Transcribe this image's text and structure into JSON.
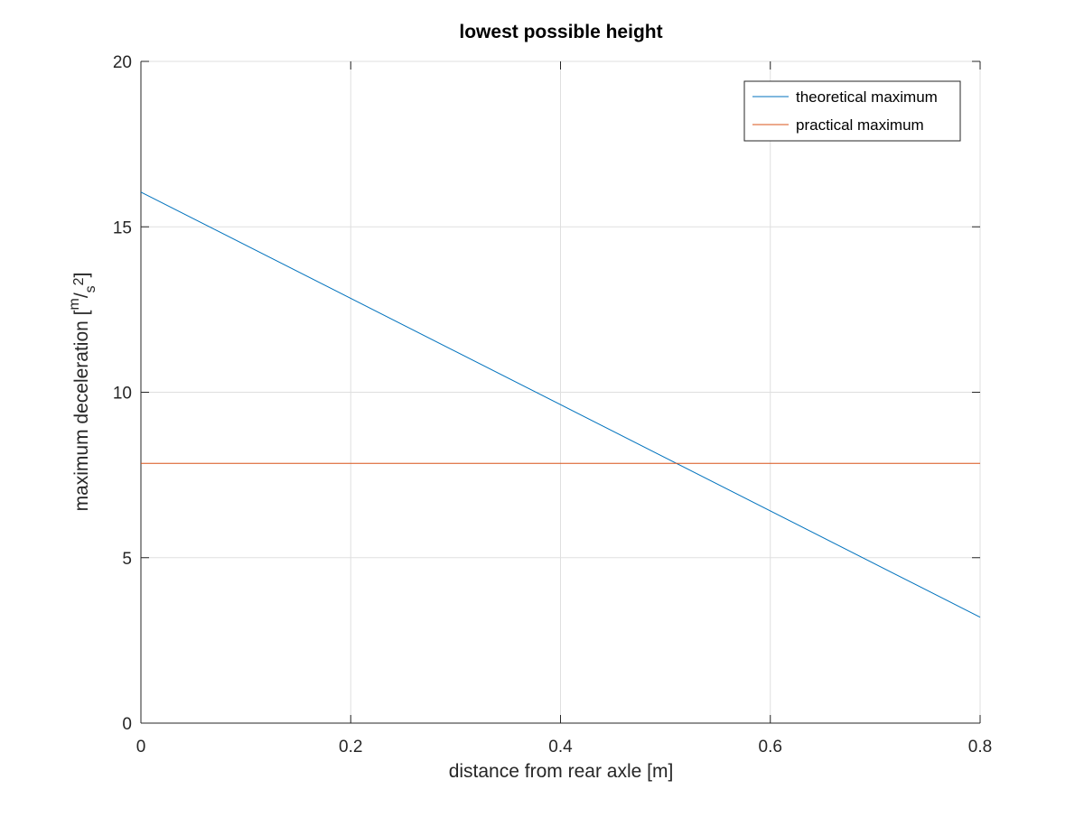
{
  "chart_data": {
    "type": "line",
    "title": "lowest possible height",
    "xlabel": "distance from rear axle [m]",
    "ylabel": {
      "prefix": "maximum deceleration [",
      "num": "m",
      "slash": "/",
      "den": "s",
      "exp": "2",
      "suffix": "]"
    },
    "xlim": [
      0,
      0.8
    ],
    "ylim": [
      0,
      20
    ],
    "xticks": [
      0,
      0.2,
      0.4,
      0.6,
      0.8
    ],
    "xtick_labels": [
      "0",
      "0.2",
      "0.4",
      "0.6",
      "0.8"
    ],
    "yticks": [
      0,
      5,
      10,
      15,
      20
    ],
    "ytick_labels": [
      "0",
      "5",
      "10",
      "15",
      "20"
    ],
    "grid": true,
    "legend_position": "top-right",
    "series": [
      {
        "name": "theoretical maximum",
        "color": "#0072BD",
        "x": [
          0,
          0.8
        ],
        "y": [
          16.05,
          3.2
        ]
      },
      {
        "name": "practical maximum",
        "color": "#D95319",
        "x": [
          0,
          0.8
        ],
        "y": [
          7.85,
          7.85
        ]
      }
    ]
  }
}
